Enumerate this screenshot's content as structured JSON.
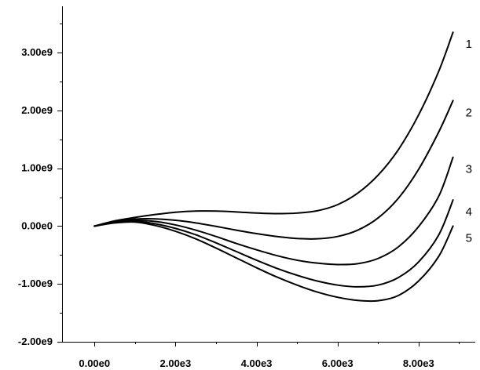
{
  "chart_data": {
    "type": "line",
    "title": "",
    "xlabel": "",
    "ylabel": "",
    "xlim": [
      -800,
      9400
    ],
    "ylim": [
      -2000000000,
      3800000000
    ],
    "x_ticks": [
      0,
      2000,
      4000,
      6000,
      8000
    ],
    "x_tick_labels": [
      "0.00e0",
      "2.00e3",
      "4.00e3",
      "6.00e3",
      "8.00e3"
    ],
    "y_ticks": [
      -2000000000,
      -1000000000,
      0,
      1000000000,
      2000000000,
      3000000000
    ],
    "y_tick_labels": [
      "-2.00e9",
      "-1.00e9",
      "0.00e0",
      "1.00e9",
      "2.00e9",
      "3.00e9"
    ],
    "grid": false,
    "legend": "inline-right",
    "series": [
      {
        "label": "1",
        "x": [
          0,
          500,
          1000,
          1500,
          2000,
          2500,
          3000,
          3500,
          4000,
          4500,
          5000,
          5500,
          6000,
          6500,
          7000,
          7500,
          8000,
          8500,
          8850
        ],
        "y": [
          0,
          90000000,
          150000000,
          200000000,
          240000000,
          260000000,
          260000000,
          245000000,
          225000000,
          215000000,
          225000000,
          265000000,
          370000000,
          570000000,
          880000000,
          1320000000,
          1920000000,
          2680000000,
          3350000000
        ]
      },
      {
        "label": "2",
        "x": [
          0,
          500,
          1000,
          1500,
          2000,
          2500,
          3000,
          3500,
          4000,
          4500,
          5000,
          5500,
          6000,
          6500,
          7000,
          7500,
          8000,
          8500,
          8850
        ],
        "y": [
          0,
          80000000,
          120000000,
          125000000,
          100000000,
          55000000,
          -5000000,
          -70000000,
          -130000000,
          -180000000,
          -215000000,
          -220000000,
          -180000000,
          -70000000,
          140000000,
          480000000,
          980000000,
          1630000000,
          2170000000
        ]
      },
      {
        "label": "3",
        "x": [
          0,
          500,
          1000,
          1500,
          2000,
          2500,
          3000,
          3500,
          4000,
          4500,
          5000,
          5500,
          6000,
          6500,
          7000,
          7500,
          8000,
          8500,
          8850
        ],
        "y": [
          0,
          70000000,
          100000000,
          80000000,
          20000000,
          -70000000,
          -180000000,
          -300000000,
          -410000000,
          -510000000,
          -590000000,
          -640000000,
          -665000000,
          -650000000,
          -560000000,
          -360000000,
          -10000000,
          520000000,
          1190000000
        ]
      },
      {
        "label": "4",
        "x": [
          0,
          500,
          1000,
          1500,
          2000,
          2500,
          3000,
          3500,
          4000,
          4500,
          5000,
          5500,
          6000,
          6500,
          7000,
          7500,
          8000,
          8500,
          8850
        ],
        "y": [
          0,
          60000000,
          85000000,
          40000000,
          -40000000,
          -150000000,
          -290000000,
          -440000000,
          -590000000,
          -730000000,
          -850000000,
          -950000000,
          -1020000000,
          -1050000000,
          -1020000000,
          -890000000,
          -620000000,
          -150000000,
          450000000
        ]
      },
      {
        "label": "5",
        "x": [
          0,
          500,
          1000,
          1500,
          2000,
          2500,
          3000,
          3500,
          4000,
          4500,
          5000,
          5500,
          6000,
          6500,
          7000,
          7500,
          8000,
          8500,
          8850
        ],
        "y": [
          0,
          55000000,
          70000000,
          10000000,
          -90000000,
          -220000000,
          -380000000,
          -550000000,
          -720000000,
          -880000000,
          -1020000000,
          -1140000000,
          -1230000000,
          -1285000000,
          -1290000000,
          -1200000000,
          -950000000,
          -520000000,
          0
        ]
      }
    ]
  }
}
